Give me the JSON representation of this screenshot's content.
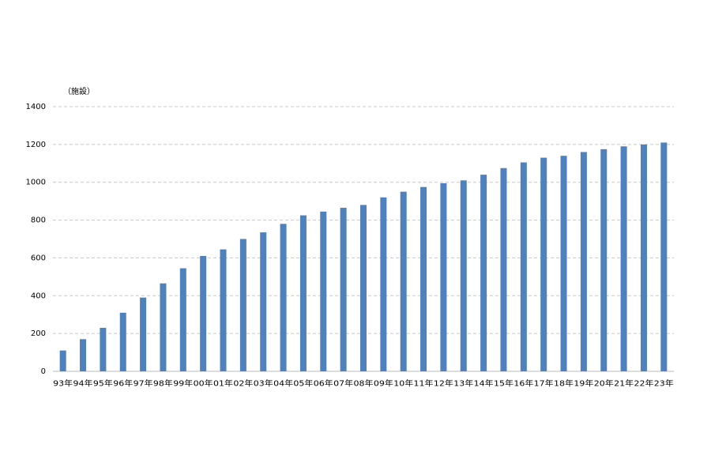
{
  "chart_data": {
    "type": "bar",
    "y_label": "（施設）",
    "categories": [
      "93年",
      "94年",
      "95年",
      "96年",
      "97年",
      "98年",
      "99年",
      "00年",
      "01年",
      "02年",
      "03年",
      "04年",
      "05年",
      "06年",
      "07年",
      "08年",
      "09年",
      "10年",
      "11年",
      "12年",
      "13年",
      "14年",
      "15年",
      "16年",
      "17年",
      "18年",
      "19年",
      "20年",
      "21年",
      "22年",
      "23年"
    ],
    "values": [
      110,
      170,
      230,
      310,
      390,
      465,
      545,
      610,
      645,
      700,
      735,
      780,
      825,
      845,
      865,
      880,
      920,
      950,
      975,
      995,
      1010,
      1040,
      1075,
      1105,
      1130,
      1140,
      1160,
      1175,
      1190,
      1200,
      1210
    ],
    "color": "#4f81bd",
    "ylim": [
      0,
      1400
    ],
    "yticks": [
      0,
      200,
      400,
      600,
      800,
      1000,
      1200,
      1400
    ],
    "grid": true
  }
}
